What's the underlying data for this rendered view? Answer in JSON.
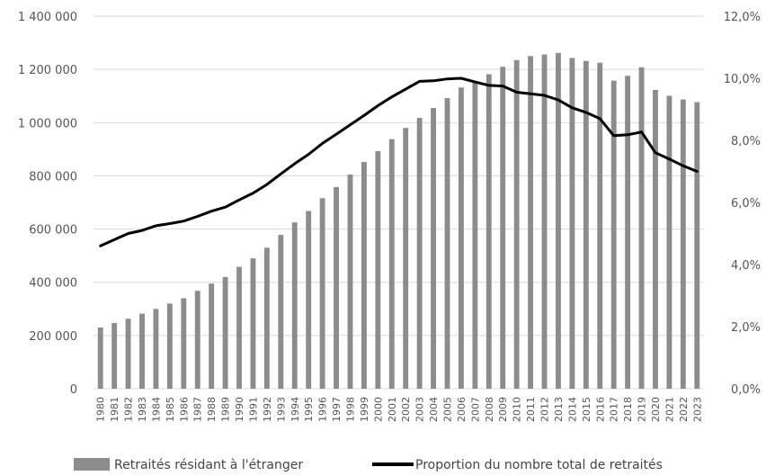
{
  "chart_data": {
    "type": "bar",
    "x": [
      "1980",
      "1981",
      "1982",
      "1983",
      "1984",
      "1985",
      "1986",
      "1987",
      "1988",
      "1989",
      "1990",
      "1991",
      "1992",
      "1993",
      "1994",
      "1995",
      "1996",
      "1997",
      "1998",
      "1999",
      "2000",
      "2001",
      "2002",
      "2003",
      "2004",
      "2005",
      "2006",
      "2007",
      "2008",
      "2009",
      "2010",
      "2011",
      "2012",
      "2013",
      "2014",
      "2015",
      "2016",
      "2017",
      "2018",
      "2019",
      "2020",
      "2021",
      "2022",
      "2023"
    ],
    "series": [
      {
        "name": "Retraités résidant à l'étranger",
        "type": "bar",
        "axis": "left",
        "color": "#8c8c8c",
        "values": [
          230000,
          247000,
          263000,
          282000,
          300000,
          320000,
          340000,
          368000,
          395000,
          420000,
          458000,
          490000,
          530000,
          578000,
          625000,
          668000,
          716000,
          758000,
          805000,
          852000,
          893000,
          938000,
          980000,
          1018000,
          1055000,
          1092000,
          1132000,
          1155000,
          1182000,
          1210000,
          1235000,
          1250000,
          1256000,
          1262000,
          1243000,
          1232000,
          1225000,
          1158000,
          1176000,
          1208000,
          1123000,
          1101000,
          1087000,
          1077000
        ]
      },
      {
        "name": "Proportion du nombre total de retraités",
        "type": "line",
        "axis": "right",
        "color": "#000000",
        "values": [
          4.6,
          4.8,
          5.0,
          5.1,
          5.25,
          5.32,
          5.4,
          5.55,
          5.72,
          5.85,
          6.08,
          6.3,
          6.58,
          6.92,
          7.25,
          7.55,
          7.9,
          8.2,
          8.5,
          8.8,
          9.12,
          9.4,
          9.65,
          9.9,
          9.92,
          9.98,
          10.0,
          9.88,
          9.77,
          9.75,
          9.55,
          9.5,
          9.45,
          9.3,
          9.05,
          8.9,
          8.7,
          8.15,
          8.18,
          8.27,
          7.6,
          7.4,
          7.18,
          7.0
        ]
      }
    ],
    "y_left": {
      "min": 0,
      "max": 1400000,
      "ticks": [
        0,
        200000,
        400000,
        600000,
        800000,
        1000000,
        1200000,
        1400000
      ],
      "tick_labels": [
        "0",
        "200 000",
        "400 000",
        "600 000",
        "800 000",
        "1 000 000",
        "1 200 000",
        "1 400 000"
      ]
    },
    "y_right": {
      "min": 0,
      "max": 12,
      "ticks": [
        0,
        2,
        4,
        6,
        8,
        10,
        12
      ],
      "tick_labels": [
        "0,0%",
        "2,0%",
        "4,0%",
        "6,0%",
        "8,0%",
        "10,0%",
        "12,0%"
      ]
    },
    "grid": true,
    "legend_position": "bottom",
    "title": "",
    "xlabel": "",
    "ylabel": ""
  }
}
